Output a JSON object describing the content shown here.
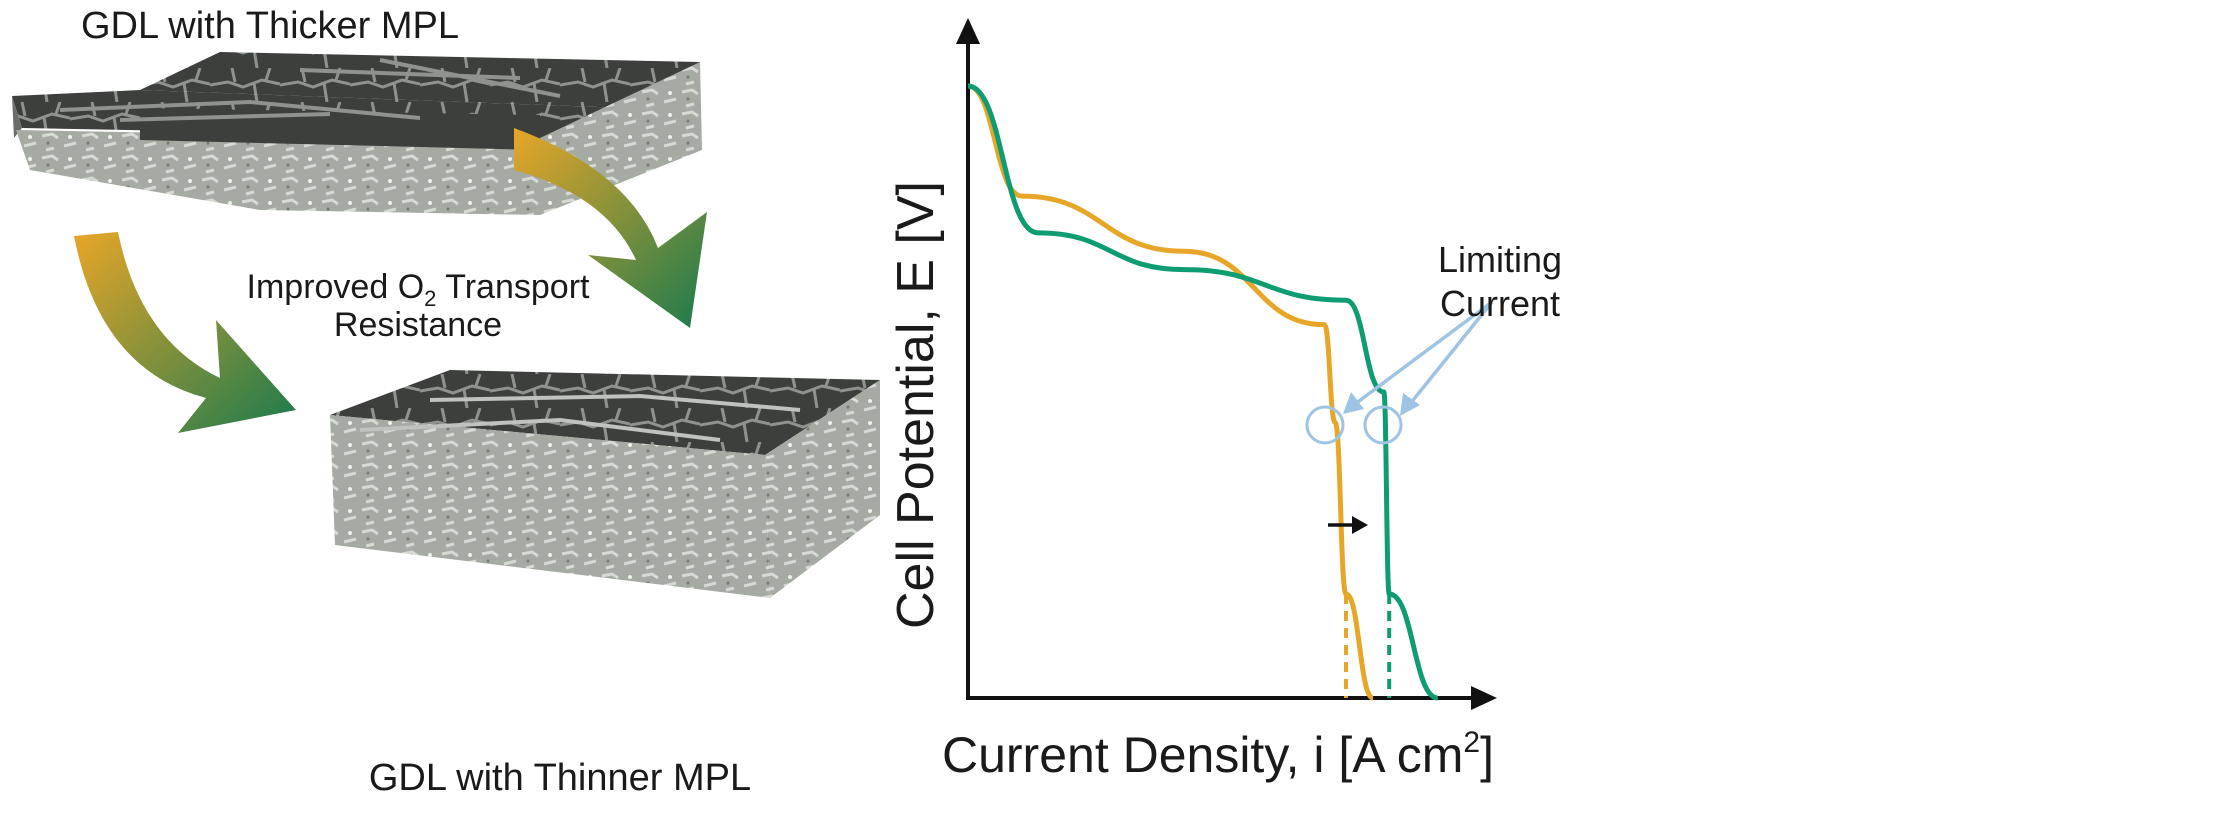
{
  "left_panel": {
    "top_label": "GDL with Thicker MPL",
    "bottom_label": "GDL with Thinner MPL",
    "middle_label_line1_pre": "Improved O",
    "middle_label_line1_sub": "2",
    "middle_label_line1_post": " Transport",
    "middle_label_line2": "Resistance"
  },
  "chart": {
    "ylabel": "Cell Potential, E [V]",
    "xlabel_pre": "Current Density, i [A cm",
    "xlabel_sup": "2",
    "xlabel_post": "]",
    "annotation_line1": "Limiting",
    "annotation_line2": "Current"
  },
  "colors": {
    "orange": "#e8a628",
    "green": "#0e9c72",
    "blue": "#9ec3e3",
    "axis": "#111111",
    "arrow_start": "#e8a628",
    "arrow_end": "#1a7a4e",
    "mpl_dark": "#3d3f3d",
    "mpl_crack": "#9aa09a",
    "gdl_gray": "#a3a8a1"
  },
  "chart_data": {
    "type": "line",
    "title": "",
    "xlabel": "Current Density, i [A cm2]",
    "ylabel": "Cell Potential, E [V]",
    "units": "qualitative (no tick values shown)",
    "series": [
      {
        "color": "orange",
        "description_shape": "polarization curve, earlier limiting current",
        "points": [
          [
            0.0,
            1.0
          ],
          [
            0.1,
            0.82
          ],
          [
            0.4,
            0.73
          ],
          [
            0.66,
            0.61
          ],
          [
            0.68,
            0.45
          ],
          [
            0.7,
            0.17
          ],
          [
            0.75,
            0.0
          ]
        ]
      },
      {
        "color": "green",
        "description_shape": "polarization curve, later limiting current",
        "points": [
          [
            0.0,
            1.0
          ],
          [
            0.13,
            0.76
          ],
          [
            0.4,
            0.7
          ],
          [
            0.7,
            0.65
          ],
          [
            0.77,
            0.5
          ],
          [
            0.78,
            0.17
          ],
          [
            0.87,
            0.0
          ]
        ]
      }
    ]
  }
}
